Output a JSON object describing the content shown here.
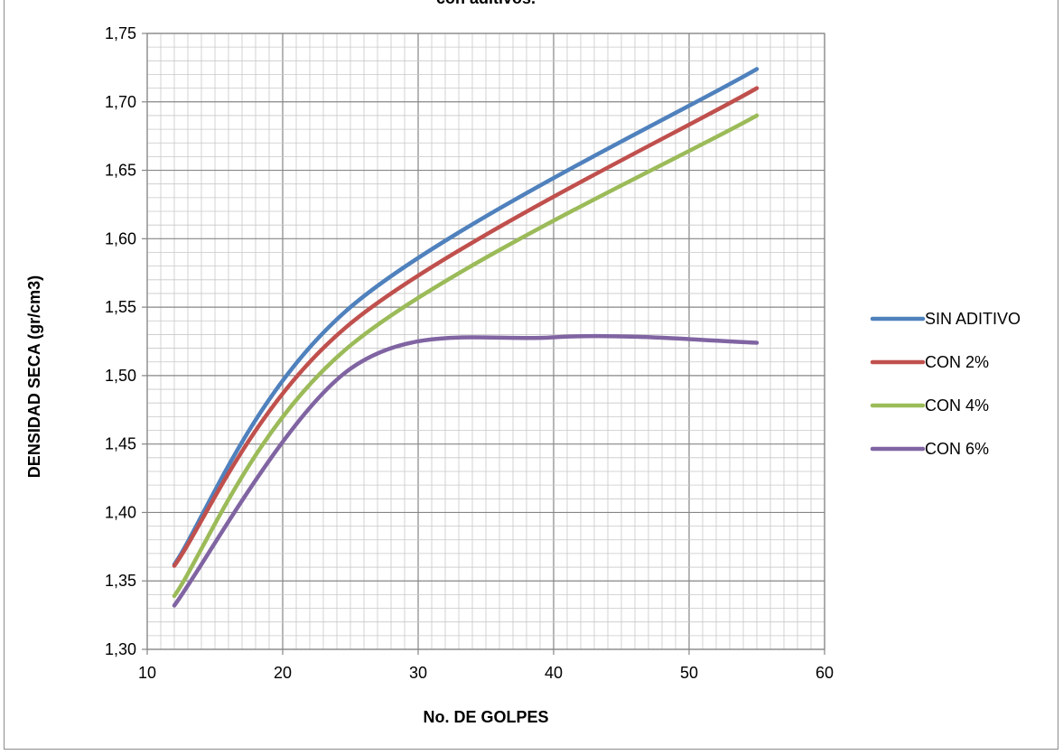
{
  "chart_data": {
    "type": "line",
    "title": "con aditivos.",
    "xlabel": "No. DE GOLPES",
    "ylabel": "DENSIDAD SECA (gr/cm3)",
    "xlim": [
      10,
      60
    ],
    "ylim": [
      1.3,
      1.75
    ],
    "x_ticks": [
      "10",
      "20",
      "30",
      "40",
      "50",
      "60"
    ],
    "y_ticks": [
      "1,30",
      "1,35",
      "1,40",
      "1,45",
      "1,50",
      "1,55",
      "1,60",
      "1,65",
      "1,70",
      "1,75"
    ],
    "grid": true,
    "legend_position": "right",
    "series": [
      {
        "name": "SIN ADITIVO",
        "color": "#4F81BD",
        "points": [
          [
            12,
            1.362
          ],
          [
            25,
            1.55
          ],
          [
            55,
            1.724
          ]
        ]
      },
      {
        "name": "CON 2%",
        "color": "#C0504D",
        "points": [
          [
            12,
            1.361
          ],
          [
            25,
            1.538
          ],
          [
            55,
            1.71
          ]
        ]
      },
      {
        "name": "CON 4%",
        "color": "#9BBB59",
        "points": [
          [
            12,
            1.339
          ],
          [
            25,
            1.522
          ],
          [
            55,
            1.69
          ]
        ]
      },
      {
        "name": "CON 6%",
        "color": "#8064A2",
        "points": [
          [
            12,
            1.332
          ],
          [
            25,
            1.505
          ],
          [
            40,
            1.528
          ],
          [
            55,
            1.524
          ]
        ]
      }
    ]
  }
}
